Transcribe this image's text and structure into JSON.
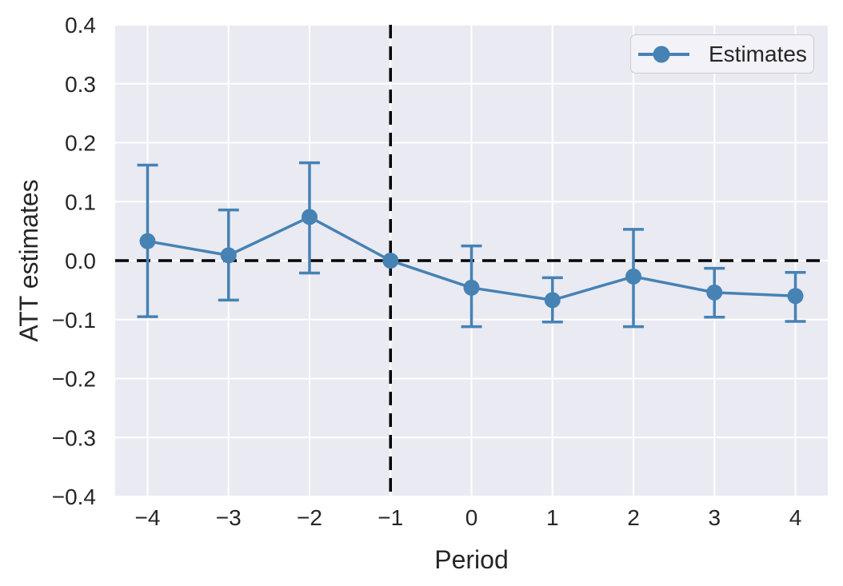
{
  "figure": {
    "background": "#ffffff",
    "kind": "event-study ATT plot"
  },
  "chart_data": {
    "type": "line",
    "title": "",
    "xlabel": "Period",
    "ylabel": "ATT estimates",
    "legend": [
      "Estimates"
    ],
    "legend_position": "upper right",
    "grid": true,
    "x": [
      -4,
      -3,
      -2,
      -1,
      0,
      1,
      2,
      3,
      4
    ],
    "series": [
      {
        "name": "Estimates",
        "values": [
          0.033,
          0.009,
          0.074,
          0.0,
          -0.046,
          -0.067,
          -0.027,
          -0.054,
          -0.06
        ],
        "ci_low": [
          -0.095,
          -0.067,
          -0.021,
          null,
          -0.112,
          -0.104,
          -0.112,
          -0.096,
          -0.103
        ],
        "ci_high": [
          0.162,
          0.086,
          0.166,
          null,
          0.025,
          -0.029,
          0.053,
          -0.013,
          -0.02
        ]
      }
    ],
    "xlim": [
      -4.4,
      4.4
    ],
    "ylim": [
      -0.4,
      0.4
    ],
    "xticks": {
      "values": [
        -4,
        -3,
        -2,
        -1,
        0,
        1,
        2,
        3,
        4
      ],
      "labels": [
        "−4",
        "−3",
        "−2",
        "−1",
        "0",
        "1",
        "2",
        "3",
        "4"
      ]
    },
    "yticks": {
      "values": [
        0.4,
        0.3,
        0.2,
        0.1,
        0.0,
        -0.1,
        -0.2,
        -0.3,
        -0.4
      ],
      "labels": [
        "0.4",
        "0.3",
        "0.2",
        "0.1",
        "0.0",
        "−0.1",
        "−0.2",
        "−0.3",
        "−0.4"
      ]
    },
    "reference_lines": {
      "horizontal_y": 0.0,
      "vertical_x": -1,
      "style": "dashed",
      "color": "#000000"
    },
    "colors": {
      "series": "#4682b4",
      "axes_background": "#eaeaf2",
      "gridline": "#ffffff",
      "text": "#262626",
      "legend_background": "#f2f2f8",
      "legend_border": "#cbcbd4",
      "reference_line": "#000000"
    }
  }
}
